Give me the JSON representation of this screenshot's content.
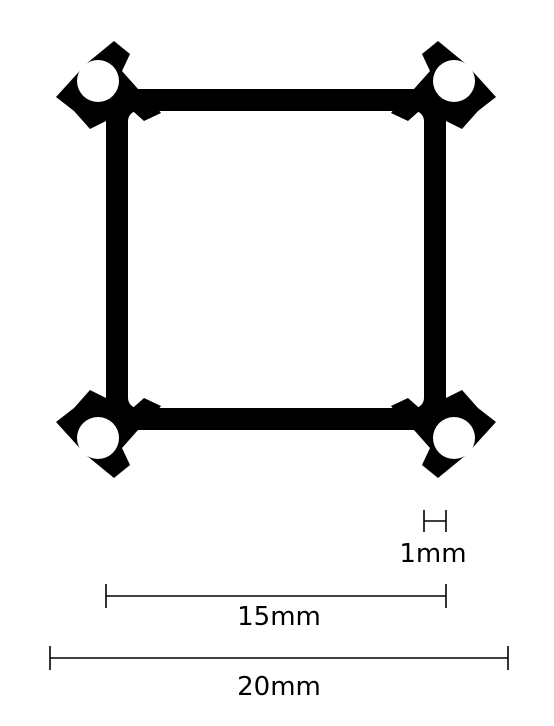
{
  "colors": {
    "profile": "#000000",
    "background": "#ffffff",
    "dimension_line": "#000000"
  },
  "dimensions": {
    "wall_thickness": "1mm",
    "inner_span": "15mm",
    "outer_span": "20mm"
  }
}
